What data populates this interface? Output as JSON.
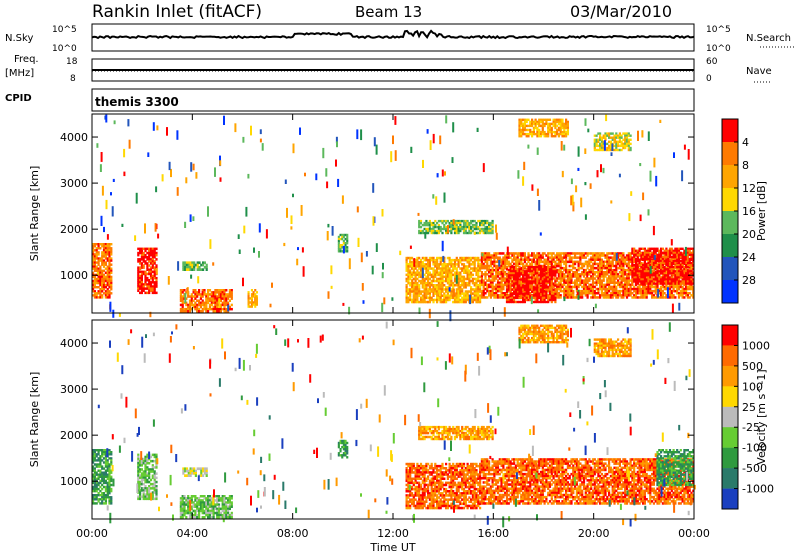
{
  "header": {
    "site": "Rankin Inlet (fitACF)",
    "beam": "Beam 13",
    "date": "03/Mar/2010"
  },
  "summary_panels": {
    "nsky_label": "N.Sky",
    "nsky_ticks": [
      "10^5",
      "10^0"
    ],
    "nsearch_label": "N.Search",
    "nsearch_ticks_right": [
      "10^5",
      "10^0"
    ],
    "freq_label_1": "Freq.",
    "freq_label_2": "[MHz]",
    "freq_ticks": [
      "18",
      "8"
    ],
    "nave_label": "Nave",
    "nave_ticks_right": [
      "60",
      "0"
    ],
    "cpid_label": "CPID",
    "cpid_value": "themis 3300"
  },
  "chart_data": [
    {
      "type": "heatmap",
      "name": "power",
      "ylabel": "Slant Range [km]",
      "xlabel": "Time UT",
      "xlim": [
        "00:00",
        "24:00"
      ],
      "x_ticks": [
        "00:00",
        "04:00",
        "08:00",
        "12:00",
        "16:00",
        "20:00",
        "00:00"
      ],
      "ylim": [
        180,
        4500
      ],
      "y_ticks": [
        1000,
        2000,
        3000,
        4000
      ],
      "colorbar": {
        "label": "Power [dB]",
        "ticks": [
          "4",
          "8",
          "12",
          "16",
          "20",
          "24",
          "28"
        ],
        "colors": [
          "#0033ff",
          "#2255bb",
          "#1f8f4a",
          "#5cb85c",
          "#ffd800",
          "#ffa500",
          "#ff7a00",
          "#ff0000"
        ]
      },
      "regions": [
        {
          "t0": 0.0,
          "t1": 0.8,
          "r0": 500,
          "r1": 1700,
          "level": 6
        },
        {
          "t0": 1.8,
          "t1": 2.6,
          "r0": 600,
          "r1": 1600,
          "level": 7
        },
        {
          "t0": 3.5,
          "t1": 5.6,
          "r0": 200,
          "r1": 700,
          "level": 6
        },
        {
          "t0": 3.6,
          "t1": 4.6,
          "r0": 1100,
          "r1": 1300,
          "level": 3
        },
        {
          "t0": 6.2,
          "t1": 6.6,
          "r0": 300,
          "r1": 700,
          "level": 5
        },
        {
          "t0": 9.8,
          "t1": 10.2,
          "r0": 1500,
          "r1": 1900,
          "level": 3
        },
        {
          "t0": 12.5,
          "t1": 15.5,
          "r0": 400,
          "r1": 1400,
          "level": 5
        },
        {
          "t0": 15.5,
          "t1": 24.0,
          "r0": 500,
          "r1": 1500,
          "level": 6
        },
        {
          "t0": 16.5,
          "t1": 18.5,
          "r0": 400,
          "r1": 1200,
          "level": 7
        },
        {
          "t0": 21.5,
          "t1": 24.0,
          "r0": 800,
          "r1": 1600,
          "level": 7
        },
        {
          "t0": 20.0,
          "t1": 21.5,
          "r0": 3700,
          "r1": 4100,
          "level": 4
        },
        {
          "t0": 13.0,
          "t1": 16.0,
          "r0": 1900,
          "r1": 2200,
          "level": 3
        },
        {
          "t0": 17.0,
          "t1": 19.0,
          "r0": 4000,
          "r1": 4400,
          "level": 5
        }
      ]
    },
    {
      "type": "heatmap",
      "name": "velocity",
      "ylabel": "Slant Range [km]",
      "xlabel": "Time UT",
      "xlim": [
        "00:00",
        "24:00"
      ],
      "x_ticks": [
        "00:00",
        "04:00",
        "08:00",
        "12:00",
        "16:00",
        "20:00",
        "00:00"
      ],
      "ylim": [
        180,
        4500
      ],
      "y_ticks": [
        1000,
        2000,
        3000,
        4000
      ],
      "colorbar": {
        "label": "Velocity [m s^-1]",
        "ticks": [
          "1000",
          "500",
          "100",
          "25",
          "-25",
          "-100",
          "-500",
          "-1000"
        ],
        "colors": [
          "#1a3fbf",
          "#2a7a6a",
          "#2f9a3f",
          "#66cc33",
          "#bbbbbb",
          "#ffd800",
          "#ff9a00",
          "#ff6a00",
          "#ff0000"
        ]
      },
      "regions": [
        {
          "t0": 0.0,
          "t1": 0.8,
          "r0": 500,
          "r1": 1700,
          "level": 2
        },
        {
          "t0": 1.8,
          "t1": 2.6,
          "r0": 600,
          "r1": 1600,
          "level": 3
        },
        {
          "t0": 3.5,
          "t1": 5.6,
          "r0": 200,
          "r1": 700,
          "level": 3
        },
        {
          "t0": 3.6,
          "t1": 4.6,
          "r0": 1100,
          "r1": 1300,
          "level": 4
        },
        {
          "t0": 9.8,
          "t1": 10.2,
          "r0": 1500,
          "r1": 1900,
          "level": 2
        },
        {
          "t0": 12.5,
          "t1": 15.5,
          "r0": 400,
          "r1": 1400,
          "level": 7
        },
        {
          "t0": 15.5,
          "t1": 24.0,
          "r0": 500,
          "r1": 1500,
          "level": 7
        },
        {
          "t0": 22.5,
          "t1": 24.0,
          "r0": 900,
          "r1": 1700,
          "level": 2
        },
        {
          "t0": 20.0,
          "t1": 21.5,
          "r0": 3700,
          "r1": 4100,
          "level": 6
        },
        {
          "t0": 13.0,
          "t1": 16.0,
          "r0": 1900,
          "r1": 2200,
          "level": 6
        },
        {
          "t0": 17.0,
          "t1": 19.0,
          "r0": 4000,
          "r1": 4400,
          "level": 6
        }
      ]
    }
  ]
}
